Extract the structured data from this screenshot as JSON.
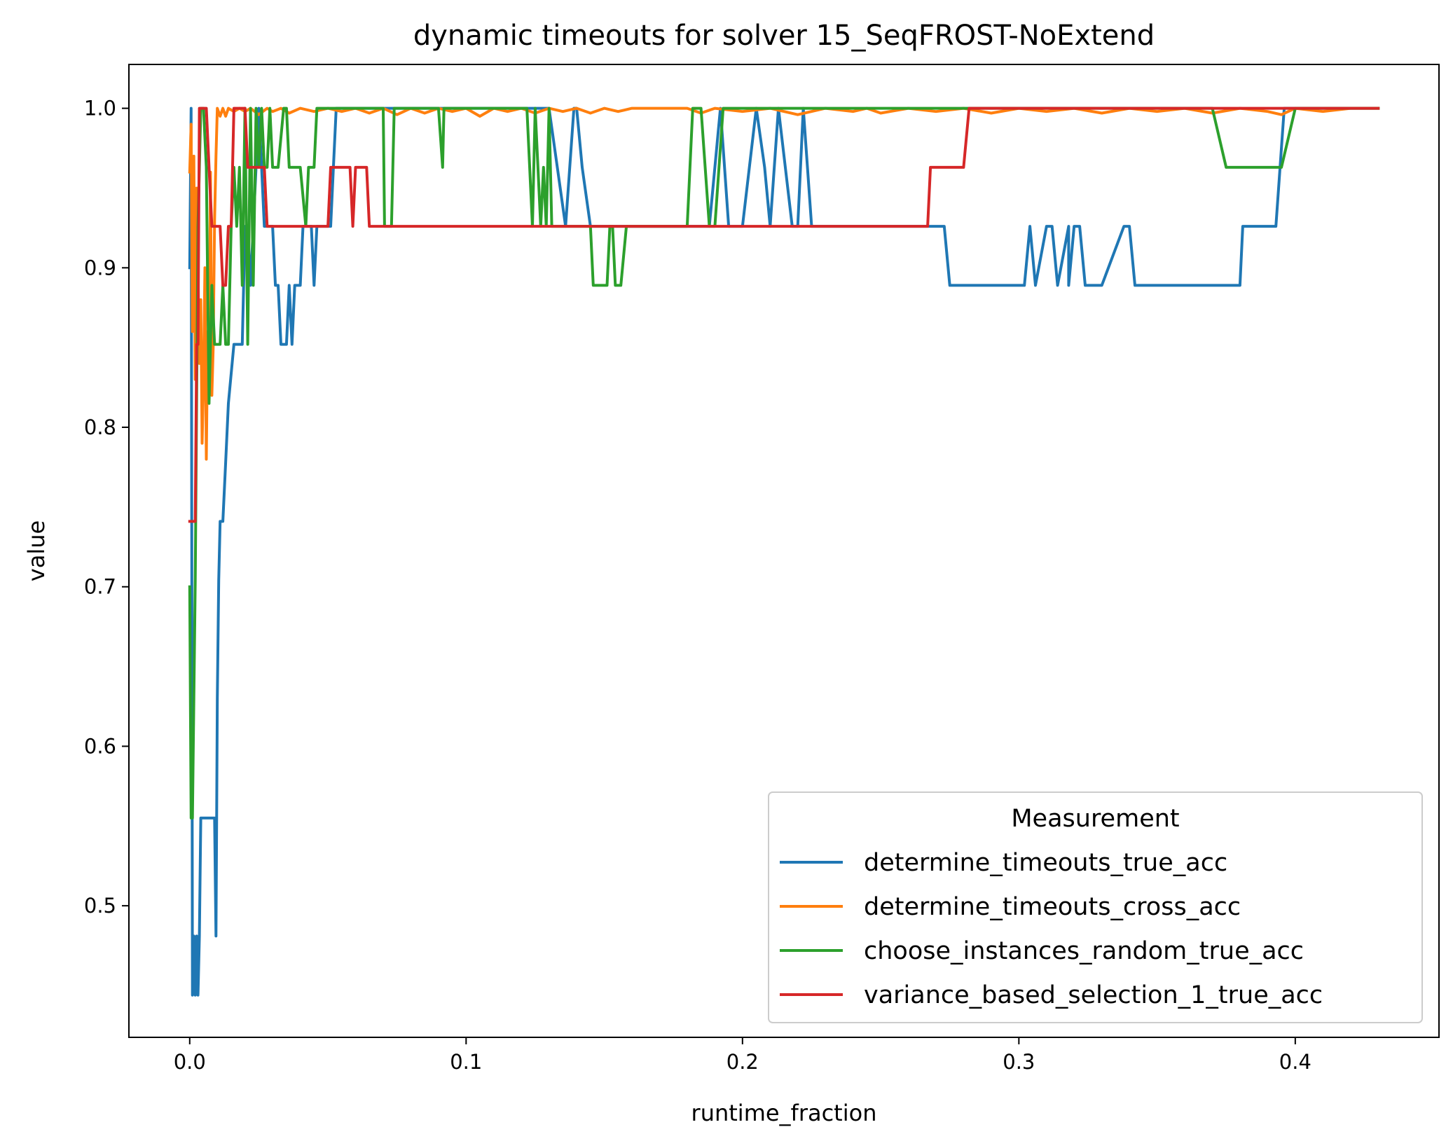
{
  "chart_data": {
    "type": "line",
    "title": "dynamic timeouts for solver 15_SeqFROST-NoExtend",
    "xlabel": "runtime_fraction",
    "ylabel": "value",
    "xlim": [
      -0.022,
      0.452
    ],
    "ylim": [
      0.4175,
      1.0275
    ],
    "xticks": [
      0.0,
      0.1,
      0.2,
      0.3,
      0.4
    ],
    "xtick_labels": [
      "0.0",
      "0.1",
      "0.2",
      "0.3",
      "0.4"
    ],
    "yticks": [
      0.5,
      0.6,
      0.7,
      0.8,
      0.9,
      1.0
    ],
    "ytick_labels": [
      "0.5",
      "0.6",
      "0.7",
      "0.8",
      "0.9",
      "1.0"
    ],
    "grid": false,
    "legend": {
      "title": "Measurement",
      "position": "lower right"
    },
    "series": [
      {
        "name": "determine_timeouts_true_acc",
        "color": "#1f77b4",
        "x": [
          0.0,
          0.0005,
          0.001,
          0.0015,
          0.002,
          0.0025,
          0.003,
          0.0035,
          0.004,
          0.0045,
          0.005,
          0.006,
          0.007,
          0.008,
          0.009,
          0.0095,
          0.01,
          0.0105,
          0.011,
          0.012,
          0.013,
          0.014,
          0.016,
          0.018,
          0.019,
          0.02,
          0.021,
          0.022,
          0.023,
          0.024,
          0.025,
          0.026,
          0.027,
          0.028,
          0.03,
          0.031,
          0.032,
          0.033,
          0.034,
          0.035,
          0.036,
          0.037,
          0.038,
          0.039,
          0.04,
          0.041,
          0.042,
          0.043,
          0.044,
          0.045,
          0.046,
          0.047,
          0.048,
          0.049,
          0.05,
          0.051,
          0.052,
          0.053,
          0.054,
          0.07,
          0.08,
          0.12,
          0.13,
          0.133,
          0.136,
          0.139,
          0.14,
          0.142,
          0.145,
          0.15,
          0.188,
          0.19,
          0.192,
          0.195,
          0.2,
          0.205,
          0.208,
          0.21,
          0.213,
          0.218,
          0.22,
          0.222,
          0.225,
          0.228,
          0.265,
          0.27,
          0.273,
          0.275,
          0.3,
          0.302,
          0.304,
          0.306,
          0.31,
          0.312,
          0.314,
          0.318,
          0.318,
          0.32,
          0.322,
          0.324,
          0.326,
          0.328,
          0.33,
          0.338,
          0.34,
          0.342,
          0.344,
          0.346,
          0.35,
          0.36,
          0.38,
          0.381,
          0.383,
          0.393,
          0.396,
          0.4,
          0.43
        ],
        "y": [
          0.9,
          1.0,
          0.444,
          0.481,
          0.444,
          0.481,
          0.444,
          0.481,
          0.555,
          0.555,
          0.555,
          0.555,
          0.555,
          0.555,
          0.555,
          0.481,
          0.63,
          0.704,
          0.741,
          0.741,
          0.778,
          0.815,
          0.852,
          0.852,
          0.852,
          0.926,
          0.926,
          0.889,
          0.926,
          0.963,
          1.0,
          0.963,
          0.926,
          0.926,
          0.926,
          0.889,
          0.889,
          0.852,
          0.852,
          0.852,
          0.889,
          0.852,
          0.889,
          0.889,
          0.889,
          0.926,
          0.926,
          0.926,
          0.926,
          0.889,
          0.926,
          0.926,
          0.926,
          0.926,
          0.926,
          0.926,
          0.963,
          1.0,
          1.0,
          1.0,
          1.0,
          1.0,
          1.0,
          0.963,
          0.926,
          1.0,
          1.0,
          0.963,
          0.926,
          0.926,
          0.926,
          0.963,
          1.0,
          0.926,
          0.926,
          1.0,
          0.963,
          0.926,
          1.0,
          0.926,
          0.926,
          1.0,
          0.926,
          0.926,
          0.926,
          0.926,
          0.926,
          0.889,
          0.889,
          0.889,
          0.926,
          0.889,
          0.926,
          0.926,
          0.889,
          0.926,
          0.889,
          0.926,
          0.926,
          0.889,
          0.889,
          0.889,
          0.889,
          0.926,
          0.926,
          0.889,
          0.889,
          0.889,
          0.889,
          0.889,
          0.889,
          0.926,
          0.926,
          0.926,
          1.0,
          1.0,
          1.0
        ]
      },
      {
        "name": "determine_timeouts_cross_acc",
        "color": "#ff7f0e",
        "x": [
          0.0,
          0.0005,
          0.001,
          0.0015,
          0.002,
          0.0025,
          0.003,
          0.0035,
          0.004,
          0.0045,
          0.005,
          0.0055,
          0.006,
          0.0065,
          0.007,
          0.0075,
          0.008,
          0.0085,
          0.009,
          0.0095,
          0.01,
          0.011,
          0.012,
          0.013,
          0.014,
          0.016,
          0.018,
          0.02,
          0.022,
          0.025,
          0.028,
          0.03,
          0.033,
          0.036,
          0.04,
          0.045,
          0.05,
          0.055,
          0.06,
          0.065,
          0.07,
          0.075,
          0.08,
          0.085,
          0.09,
          0.095,
          0.1,
          0.105,
          0.11,
          0.115,
          0.12,
          0.125,
          0.13,
          0.135,
          0.14,
          0.145,
          0.15,
          0.155,
          0.16,
          0.17,
          0.18,
          0.185,
          0.19,
          0.2,
          0.21,
          0.22,
          0.23,
          0.24,
          0.245,
          0.25,
          0.26,
          0.27,
          0.28,
          0.29,
          0.3,
          0.31,
          0.32,
          0.33,
          0.34,
          0.35,
          0.36,
          0.37,
          0.38,
          0.39,
          0.395,
          0.4,
          0.41,
          0.42,
          0.43
        ],
        "y": [
          0.96,
          0.99,
          0.86,
          0.97,
          0.83,
          0.95,
          0.9,
          0.84,
          0.88,
          0.79,
          0.83,
          0.9,
          0.78,
          0.86,
          0.82,
          0.96,
          0.82,
          0.85,
          0.93,
          0.97,
          1.0,
          0.995,
          1.0,
          0.995,
          1.0,
          0.998,
          1.0,
          0.998,
          1.0,
          0.996,
          1.0,
          0.998,
          1.0,
          0.997,
          1.0,
          0.998,
          1.0,
          0.998,
          1.0,
          0.997,
          1.0,
          0.996,
          1.0,
          0.997,
          1.0,
          0.998,
          1.0,
          0.995,
          1.0,
          0.998,
          1.0,
          0.997,
          1.0,
          0.998,
          1.0,
          0.997,
          1.0,
          0.998,
          1.0,
          1.0,
          1.0,
          0.997,
          1.0,
          0.998,
          1.0,
          0.996,
          1.0,
          0.998,
          1.0,
          0.997,
          1.0,
          0.998,
          1.0,
          0.997,
          1.0,
          0.998,
          1.0,
          0.997,
          1.0,
          0.998,
          1.0,
          0.997,
          1.0,
          0.998,
          0.996,
          1.0,
          0.998,
          1.0,
          1.0
        ]
      },
      {
        "name": "choose_instances_random_true_acc",
        "color": "#2ca02c",
        "x": [
          0.0,
          0.0005,
          0.001,
          0.0015,
          0.002,
          0.003,
          0.004,
          0.005,
          0.006,
          0.007,
          0.008,
          0.009,
          0.01,
          0.011,
          0.012,
          0.013,
          0.014,
          0.015,
          0.016,
          0.017,
          0.018,
          0.019,
          0.02,
          0.021,
          0.022,
          0.023,
          0.024,
          0.025,
          0.026,
          0.027,
          0.028,
          0.029,
          0.03,
          0.032,
          0.034,
          0.035,
          0.036,
          0.037,
          0.038,
          0.04,
          0.042,
          0.043,
          0.044,
          0.045,
          0.046,
          0.047,
          0.048,
          0.049,
          0.05,
          0.07,
          0.0705,
          0.073,
          0.074,
          0.075,
          0.09,
          0.0915,
          0.092,
          0.093,
          0.12,
          0.122,
          0.124,
          0.125,
          0.127,
          0.128,
          0.129,
          0.13,
          0.131,
          0.132,
          0.14,
          0.145,
          0.146,
          0.15,
          0.151,
          0.152,
          0.153,
          0.154,
          0.155,
          0.156,
          0.158,
          0.16,
          0.18,
          0.182,
          0.183,
          0.185,
          0.188,
          0.19,
          0.193,
          0.195,
          0.2,
          0.25,
          0.3,
          0.35,
          0.37,
          0.375,
          0.376,
          0.378,
          0.38,
          0.395,
          0.4,
          0.43
        ],
        "y": [
          0.7,
          0.555,
          0.555,
          0.63,
          0.704,
          0.926,
          1.0,
          1.0,
          0.963,
          0.815,
          0.889,
          0.852,
          0.852,
          0.852,
          0.889,
          0.852,
          0.852,
          0.926,
          0.963,
          0.926,
          0.963,
          0.889,
          1.0,
          0.852,
          1.0,
          0.889,
          1.0,
          0.963,
          1.0,
          0.963,
          0.963,
          1.0,
          0.963,
          0.963,
          1.0,
          1.0,
          0.963,
          0.963,
          0.963,
          0.963,
          0.926,
          0.963,
          0.963,
          0.963,
          1.0,
          1.0,
          1.0,
          1.0,
          1.0,
          1.0,
          0.926,
          0.926,
          1.0,
          1.0,
          1.0,
          0.963,
          1.0,
          1.0,
          1.0,
          1.0,
          0.926,
          1.0,
          0.926,
          0.963,
          0.926,
          1.0,
          0.926,
          0.926,
          0.926,
          0.926,
          0.889,
          0.889,
          0.889,
          0.926,
          0.926,
          0.889,
          0.889,
          0.889,
          0.926,
          0.926,
          0.926,
          1.0,
          1.0,
          1.0,
          0.926,
          0.926,
          1.0,
          1.0,
          1.0,
          1.0,
          1.0,
          1.0,
          1.0,
          0.963,
          0.963,
          0.963,
          0.963,
          0.963,
          1.0,
          1.0
        ]
      },
      {
        "name": "variance_based_selection_1_true_acc",
        "color": "#d62728",
        "x": [
          0.0,
          0.001,
          0.002,
          0.0025,
          0.003,
          0.0035,
          0.004,
          0.005,
          0.006,
          0.007,
          0.008,
          0.009,
          0.01,
          0.011,
          0.012,
          0.013,
          0.014,
          0.015,
          0.016,
          0.017,
          0.018,
          0.02,
          0.021,
          0.022,
          0.023,
          0.025,
          0.027,
          0.028,
          0.03,
          0.045,
          0.05,
          0.051,
          0.052,
          0.058,
          0.059,
          0.06,
          0.061,
          0.064,
          0.065,
          0.267,
          0.268,
          0.27,
          0.278,
          0.28,
          0.282,
          0.283,
          0.3,
          0.43
        ],
        "y": [
          0.741,
          0.741,
          0.741,
          0.852,
          0.852,
          1.0,
          1.0,
          1.0,
          1.0,
          0.963,
          0.926,
          0.926,
          0.926,
          0.926,
          0.889,
          0.889,
          0.926,
          0.926,
          1.0,
          1.0,
          1.0,
          1.0,
          0.963,
          0.963,
          0.963,
          0.963,
          0.963,
          0.926,
          0.926,
          0.926,
          0.926,
          0.963,
          0.963,
          0.963,
          0.926,
          0.963,
          0.963,
          0.963,
          0.926,
          0.926,
          0.963,
          0.963,
          0.963,
          0.963,
          1.0,
          1.0,
          1.0,
          1.0
        ]
      }
    ]
  }
}
